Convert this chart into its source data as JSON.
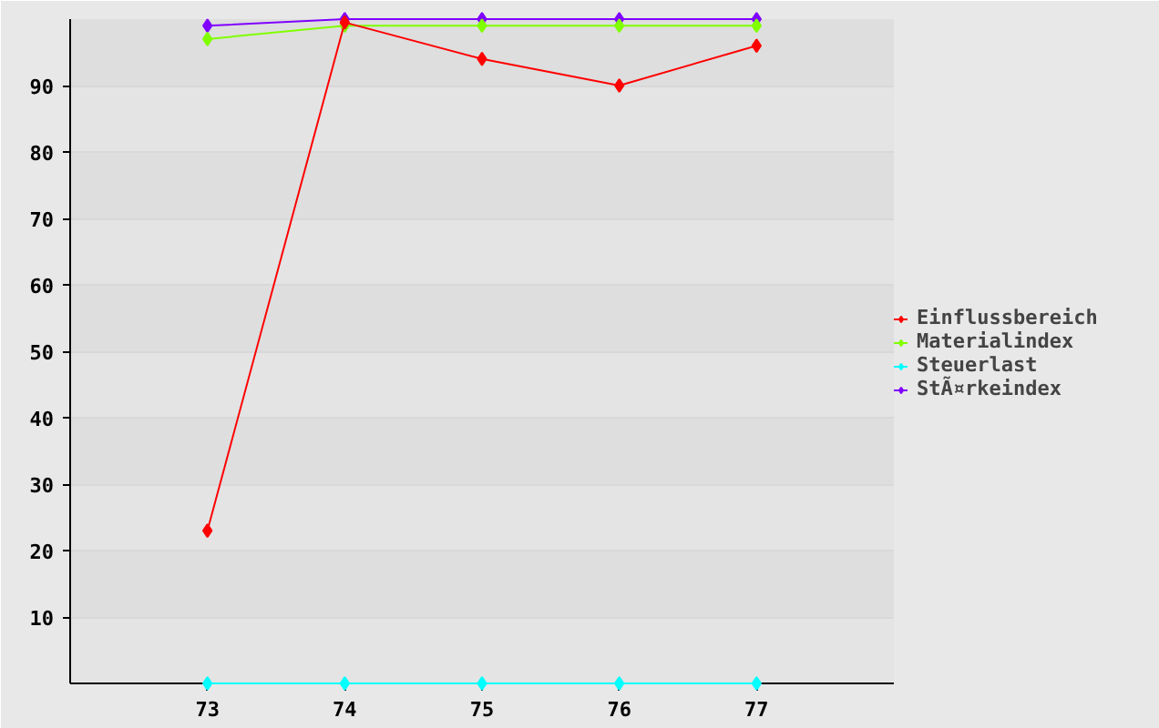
{
  "chart_data": {
    "type": "line",
    "x": [
      73,
      74,
      75,
      76,
      77
    ],
    "series": [
      {
        "name": "Einflussbereich",
        "color": "#ff0000",
        "values": [
          23,
          99.5,
          94,
          90,
          96
        ]
      },
      {
        "name": "Materialindex",
        "color": "#80ff00",
        "values": [
          97,
          99,
          99,
          99,
          99
        ]
      },
      {
        "name": "Steuerlast",
        "color": "#00ffff",
        "values": [
          0,
          0,
          0,
          0,
          0
        ]
      },
      {
        "name": "StÃ¤rkeindex",
        "color": "#8000ff",
        "values": [
          99,
          100,
          100,
          100,
          100
        ]
      }
    ],
    "xlim": [
      72,
      78
    ],
    "xticks": [
      73,
      74,
      75,
      76,
      77
    ],
    "ylim": [
      0,
      100
    ],
    "yticks": [
      10,
      20,
      30,
      40,
      50,
      60,
      70,
      80,
      90
    ],
    "grid": "y",
    "legend": "right",
    "marker": "diamond",
    "line_style": "solid"
  }
}
